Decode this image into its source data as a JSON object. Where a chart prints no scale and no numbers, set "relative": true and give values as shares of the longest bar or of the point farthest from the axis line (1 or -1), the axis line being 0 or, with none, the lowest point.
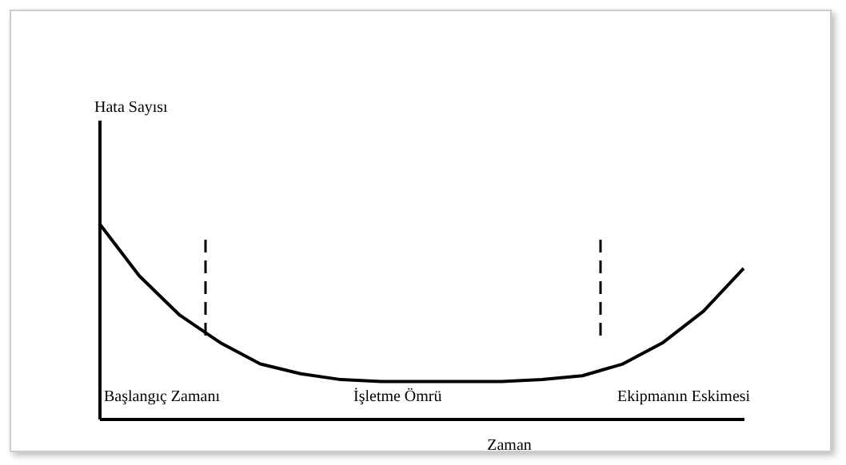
{
  "chart_data": {
    "type": "line",
    "relative": true,
    "xlabel": "Zaman",
    "color": "#000000",
    "line_style": "solid",
    "marker": "none",
    "categories": [
      null,
      null,
      null,
      null,
      null,
      null,
      null,
      null,
      null,
      null,
      null,
      null,
      null,
      null,
      null,
      null,
      null
    ],
    "values": [
      1,
      0.73,
      0.53,
      0.39,
      0.28,
      0.23,
      0.2,
      0.19,
      0.19,
      0.19,
      0.19,
      0.2,
      0.22,
      0.28,
      0.39,
      0.55,
      0.77
    ],
    "annotations": [
      "Hata Sayısı",
      "Başlangıç Zamanı",
      "İşletme Ömrü",
      "Ekipmanın Eskimesi"
    ]
  }
}
